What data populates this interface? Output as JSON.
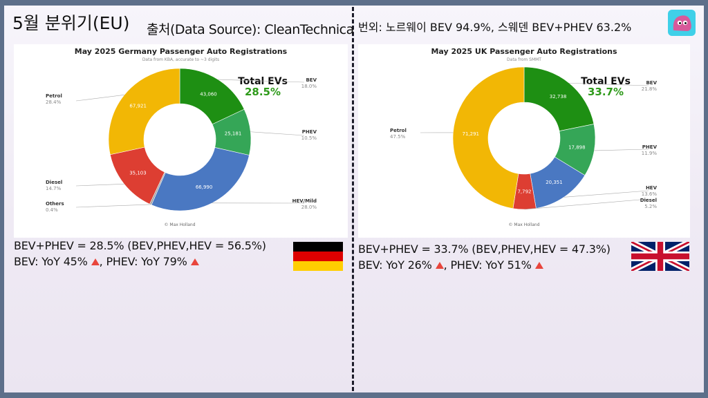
{
  "header": {
    "title": "5월 분위기(EU)",
    "source": "출처(Data Source): CleanTechnica",
    "extra": "번외: 노르웨이 BEV 94.9%, 스웨덴 BEV+PHEV 63.2%"
  },
  "germany": {
    "summary": "BEV+PHEV = 28.5% (BEV,PHEV,HEV = 56.5%)",
    "bev_yoy": "BEV: YoY 45%",
    "comma": ", ",
    "phev_yoy": "PHEV: YoY 79%",
    "flag_colors": [
      "#000000",
      "#dd0000",
      "#ffce00"
    ]
  },
  "uk": {
    "summary": "BEV+PHEV = 33.7% (BEV,PHEV,HEV = 47.3%)",
    "bev_yoy": "BEV: YoY 26%",
    "comma": ", ",
    "phev_yoy": "PHEV: YoY 51%",
    "flag_colors": [
      "#012169",
      "#ffffff",
      "#c8102e"
    ]
  },
  "icons": {
    "up": "triangle-up-icon",
    "mascot": "blob-mascot-icon"
  },
  "chart_data": [
    {
      "type": "pie",
      "title": "May 2025 Germany Passenger Auto Registrations",
      "subtitle": "Data from KBA, accurate to ~3 digits",
      "credit": "© Max Holland",
      "total_label": "Total EVs",
      "total_value": "28.5%",
      "slices": [
        {
          "name": "BEV",
          "value": 43060,
          "pct": "18.0%",
          "color": "#1e8f13"
        },
        {
          "name": "PHEV",
          "value": 25181,
          "pct": "10.5%",
          "color": "#35a657"
        },
        {
          "name": "HEV/Mild",
          "value": 66990,
          "pct": "28.0%",
          "color": "#4a78c2"
        },
        {
          "name": "Others",
          "value": 1000,
          "pct": "0.4%",
          "color": "#9e9e9e"
        },
        {
          "name": "Diesel",
          "value": 35103,
          "pct": "14.7%",
          "color": "#dd3e32"
        },
        {
          "name": "Petrol",
          "value": 67921,
          "pct": "28.4%",
          "color": "#f2b705"
        }
      ]
    },
    {
      "type": "pie",
      "title": "May 2025 UK Passenger Auto Registrations",
      "subtitle": "Data from SMMT",
      "credit": "© Max Holland",
      "total_label": "Total EVs",
      "total_value": "33.7%",
      "slices": [
        {
          "name": "BEV",
          "value": 32738,
          "pct": "21.8%",
          "color": "#1e8f13"
        },
        {
          "name": "PHEV",
          "value": 17898,
          "pct": "11.9%",
          "color": "#35a657"
        },
        {
          "name": "HEV",
          "value": 20351,
          "pct": "13.6%",
          "color": "#4a78c2"
        },
        {
          "name": "Diesel",
          "value": 7792,
          "pct": "5.2%",
          "color": "#dd3e32"
        },
        {
          "name": "Petrol",
          "value": 71291,
          "pct": "47.5%",
          "color": "#f2b705"
        }
      ]
    }
  ]
}
